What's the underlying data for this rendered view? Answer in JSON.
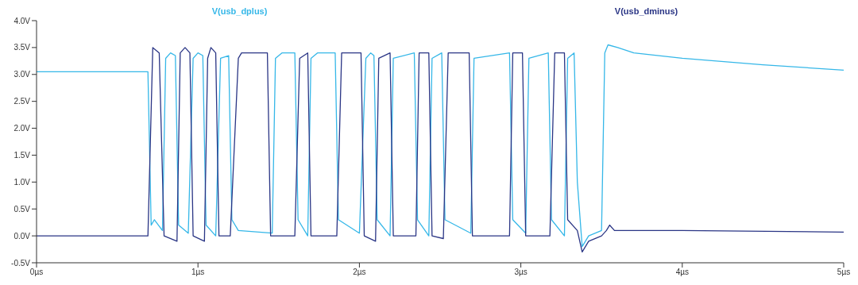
{
  "chart_data": {
    "type": "line",
    "legend": "top",
    "grid": false,
    "marker": "none",
    "line_style": "solid",
    "xlim": [
      0,
      5
    ],
    "xticks": [
      {
        "value": 0,
        "label": "0µs"
      },
      {
        "value": 1,
        "label": "1µs"
      },
      {
        "value": 2,
        "label": "2µs"
      },
      {
        "value": 3,
        "label": "3µs"
      },
      {
        "value": 4,
        "label": "4µs"
      },
      {
        "value": 5,
        "label": "5µs"
      }
    ],
    "ylim": [
      -0.5,
      4
    ],
    "yticks": [
      {
        "value": -0.5,
        "label": "-0.5V"
      },
      {
        "value": 0,
        "label": "0.0V"
      },
      {
        "value": 0.5,
        "label": "0.5V"
      },
      {
        "value": 1,
        "label": "1.0V"
      },
      {
        "value": 1.5,
        "label": "1.5V"
      },
      {
        "value": 2,
        "label": "2.0V"
      },
      {
        "value": 2.5,
        "label": "2.5V"
      },
      {
        "value": 3,
        "label": "3.0V"
      },
      {
        "value": 3.5,
        "label": "3.5V"
      },
      {
        "value": 4,
        "label": "4.0V"
      }
    ],
    "series": [
      {
        "name": "V(usb_dplus)",
        "color": "#35b7e8",
        "x": [
          0,
          0.69,
          0.71,
          0.73,
          0.78,
          0.8,
          0.83,
          0.86,
          0.88,
          0.94,
          0.97,
          1,
          1.03,
          1.05,
          1.11,
          1.14,
          1.19,
          1.21,
          1.25,
          1.46,
          1.48,
          1.52,
          1.6,
          1.62,
          1.68,
          1.7,
          1.74,
          1.85,
          1.87,
          2,
          2.04,
          2.07,
          2.09,
          2.11,
          2.19,
          2.21,
          2.34,
          2.36,
          2.43,
          2.45,
          2.51,
          2.53,
          2.69,
          2.71,
          2.93,
          2.95,
          3.03,
          3.05,
          3.17,
          3.19,
          3.27,
          3.29,
          3.33,
          3.35,
          3.38,
          3.42,
          3.5,
          3.52,
          3.54,
          3.6,
          3.7,
          4,
          4.5,
          5
        ],
        "values": [
          3.05,
          3.05,
          0.2,
          0.3,
          0.1,
          3.3,
          3.4,
          3.35,
          0.2,
          0.05,
          3.3,
          3.4,
          3.35,
          0.2,
          0,
          3.3,
          3.35,
          0.3,
          0.1,
          0.05,
          3.3,
          3.4,
          3.4,
          0.3,
          0,
          3.3,
          3.4,
          3.4,
          0.3,
          0.05,
          3.3,
          3.4,
          3.35,
          0.3,
          0,
          3.3,
          3.4,
          0.3,
          0,
          3.3,
          3.4,
          0.3,
          0.05,
          3.3,
          3.4,
          0.3,
          0.05,
          3.3,
          3.4,
          0.3,
          0,
          3.3,
          3.4,
          1,
          -0.2,
          0,
          0.1,
          3.4,
          3.55,
          3.5,
          3.4,
          3.3,
          3.18,
          3.08
        ]
      },
      {
        "name": "V(usb_dminus)",
        "color": "#2a3585",
        "x": [
          0,
          0.69,
          0.72,
          0.76,
          0.79,
          0.87,
          0.89,
          0.92,
          0.95,
          0.97,
          1.04,
          1.06,
          1.08,
          1.11,
          1.13,
          1.2,
          1.25,
          1.27,
          1.43,
          1.45,
          1.6,
          1.63,
          1.68,
          1.7,
          1.86,
          1.89,
          2.01,
          2.03,
          2.1,
          2.12,
          2.19,
          2.21,
          2.35,
          2.37,
          2.43,
          2.45,
          2.52,
          2.55,
          2.68,
          2.7,
          2.93,
          2.95,
          3.01,
          3.03,
          3.18,
          3.21,
          3.27,
          3.29,
          3.35,
          3.38,
          3.42,
          3.5,
          3.53,
          3.55,
          3.58,
          4,
          5
        ],
        "values": [
          0,
          0,
          3.5,
          3.4,
          0,
          -0.1,
          3.4,
          3.5,
          3.4,
          0,
          -0.1,
          3.3,
          3.5,
          3.4,
          0,
          0,
          3.3,
          3.4,
          3.4,
          0,
          0,
          3.3,
          3.4,
          0,
          0,
          3.4,
          3.4,
          0,
          -0.1,
          3.3,
          3.4,
          0,
          0,
          3.4,
          3.4,
          0,
          -0.05,
          3.4,
          3.4,
          0,
          0,
          3.4,
          3.4,
          0,
          0,
          3.4,
          3.4,
          0.3,
          0.1,
          -0.3,
          -0.1,
          0,
          0.1,
          0.2,
          0.1,
          0.1,
          0.07
        ]
      }
    ]
  }
}
